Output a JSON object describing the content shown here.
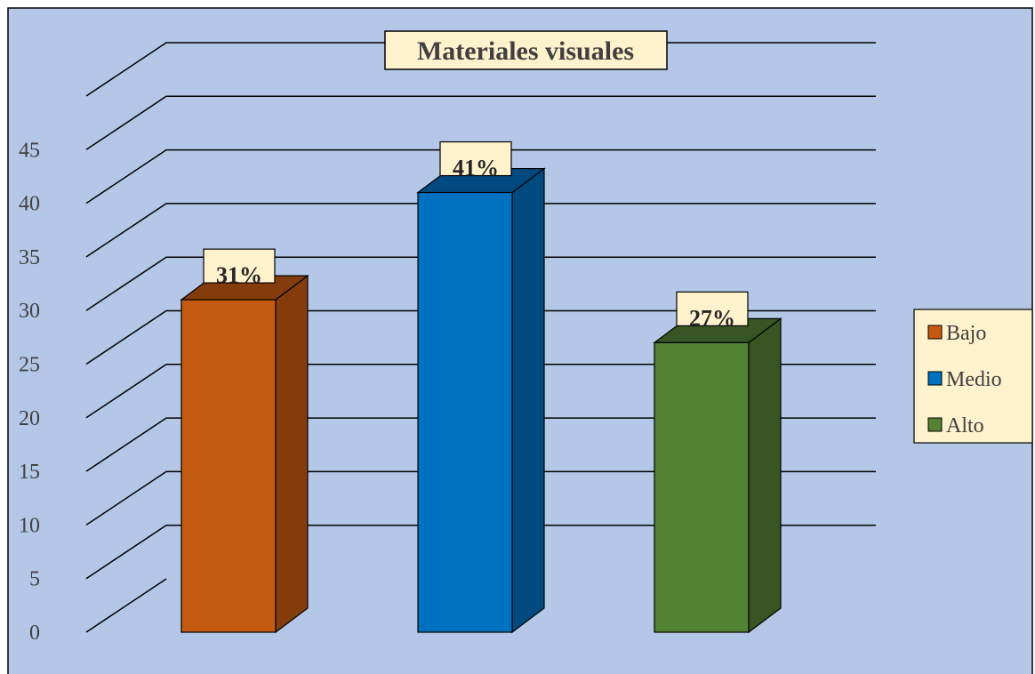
{
  "chart_data": {
    "type": "bar",
    "title": "Materiales visuales",
    "categories": [
      "Bajo",
      "Medio",
      "Alto"
    ],
    "values": [
      31,
      41,
      27
    ],
    "data_labels": [
      "31%",
      "41%",
      "27%"
    ],
    "ylim": [
      0,
      50
    ],
    "yticks": [
      0,
      5,
      10,
      15,
      20,
      25,
      30,
      35,
      40,
      45
    ],
    "grid": true,
    "legend": {
      "placement": "right",
      "entries": [
        "Bajo",
        "Medio",
        "Alto"
      ]
    },
    "colors": {
      "Bajo": {
        "front": "#c55a11",
        "side": "#843c0c"
      },
      "Medio": {
        "front": "#0070c0",
        "side": "#004a80"
      },
      "Alto": {
        "front": "#548235",
        "side": "#375623"
      }
    },
    "background": "#b4c7e7",
    "label_background": "#fff2cc"
  }
}
